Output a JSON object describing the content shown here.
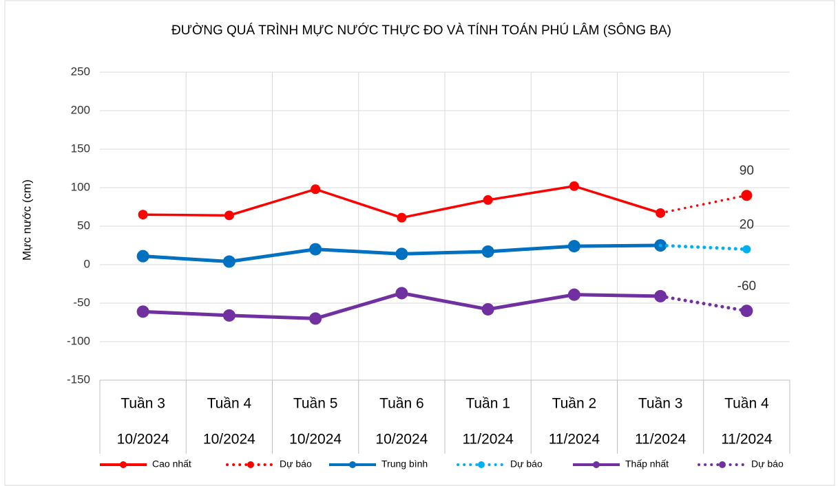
{
  "chart_data": {
    "type": "line",
    "title": "ĐƯỜNG QUÁ TRÌNH MỰC NƯỚC THỰC ĐO VÀ TÍNH TOÁN PHÚ LÂM (SÔNG BA)",
    "y_label": "Mực nước (cm)",
    "categories": [
      "Tuần 3",
      "Tuần 4",
      "Tuần 5",
      "Tuần 6",
      "Tuần 1",
      "Tuần 2",
      "Tuần 3",
      "Tuần 4"
    ],
    "category_groups": [
      "10/2024",
      "10/2024",
      "10/2024",
      "10/2024",
      "11/2024",
      "11/2024",
      "11/2024",
      "11/2024"
    ],
    "ylim": [
      -150,
      250
    ],
    "yticks": [
      -150,
      -100,
      -50,
      0,
      50,
      100,
      150,
      200,
      250
    ],
    "grid": true,
    "legend": "bottom",
    "series": [
      {
        "name": "Cao nhất",
        "color": "#ff0000",
        "style": "solid",
        "values": [
          65,
          64,
          98,
          61,
          84,
          102,
          67,
          null
        ]
      },
      {
        "name": "Dự báo",
        "color": "#ff0000",
        "style": "dotted",
        "values": [
          null,
          null,
          null,
          null,
          null,
          null,
          67,
          90
        ],
        "labeled_points": [
          7
        ]
      },
      {
        "name": "Trung bình",
        "color": "#0070c0",
        "style": "solid",
        "values": [
          11,
          4,
          20,
          14,
          17,
          24,
          25,
          null
        ]
      },
      {
        "name": "Dự báo",
        "color": "#00b0f0",
        "style": "dotted",
        "values": [
          null,
          null,
          null,
          null,
          null,
          null,
          25,
          20
        ],
        "labeled_points": [
          7
        ]
      },
      {
        "name": "Thấp nhất",
        "color": "#7030a0",
        "style": "solid",
        "values": [
          -61,
          -66,
          -70,
          -37,
          -58,
          -39,
          -41,
          null
        ]
      },
      {
        "name": "Dự báo",
        "color": "#7030a0",
        "style": "dotted",
        "values": [
          null,
          null,
          null,
          null,
          null,
          null,
          -41,
          -60
        ],
        "labeled_points": [
          7
        ]
      }
    ]
  }
}
